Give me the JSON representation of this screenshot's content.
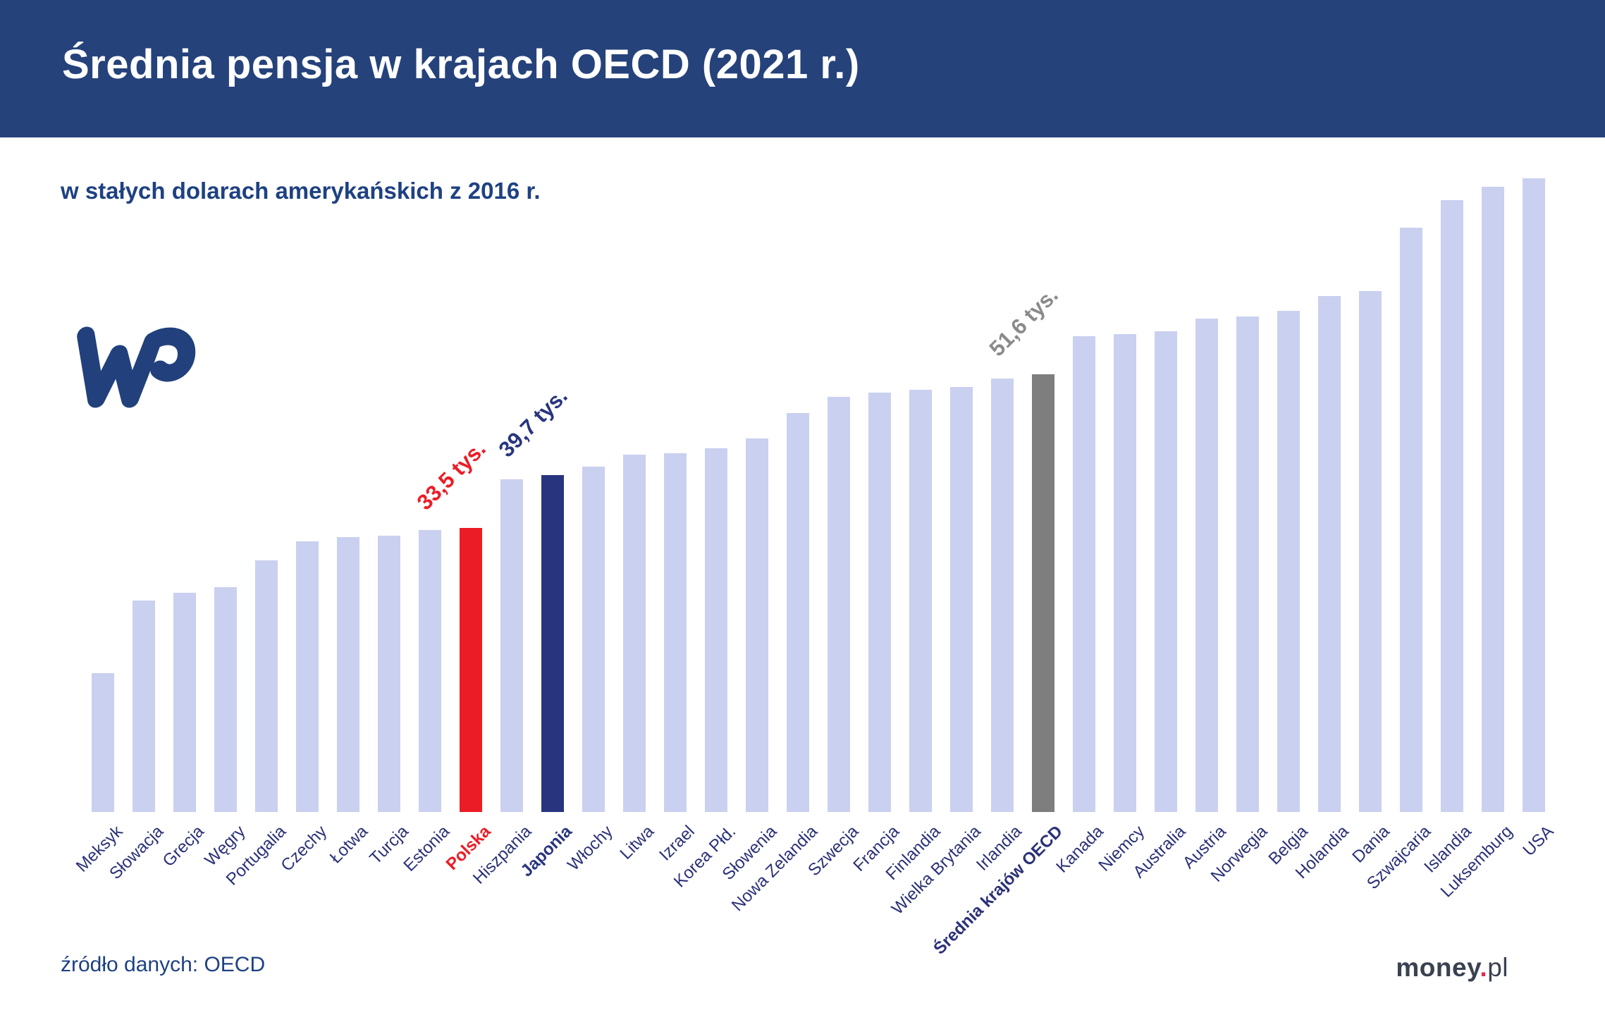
{
  "header": {
    "title": "Średnia pensja w krajach OECD (2021 r.)"
  },
  "subtitle": "w stałych dolarach amerykańskich z 2016 r.",
  "source_note": "źródło danych: OECD",
  "brand": {
    "money": "money",
    "dot": ".",
    "pl": "pl"
  },
  "wp_logo_name": "WP",
  "colors": {
    "header_bg": "#25427b",
    "title_text": "#ffffff",
    "subtitle_text": "#1e4182",
    "bar_default": "#cad0ef",
    "bar_poland": "#ec1c26",
    "bar_japan": "#28357e",
    "bar_oecd_avg": "#7e7e7e",
    "label_default": "#2b3178",
    "annotation_gray": "#8a8a8a"
  },
  "chart_data": {
    "type": "bar",
    "title": "Średnia pensja w krajach OECD (2021 r.)",
    "subtitle": "w stałych dolarach amerykańskich z 2016 r.",
    "unit": "tys. USD (stałe ceny 2016)",
    "xlabel": "",
    "ylabel": "",
    "grid": false,
    "legend": false,
    "ylim": [
      0,
      80
    ],
    "categories": [
      "Meksyk",
      "Słowacja",
      "Grecja",
      "Węgry",
      "Portugalia",
      "Czechy",
      "Łotwa",
      "Turcja",
      "Estonia",
      "Polska",
      "Hiszpania",
      "Japonia",
      "Włochy",
      "Litwa",
      "Izrael",
      "Korea Płd.",
      "Słowenia",
      "Nowa Zelandia",
      "Szwecja",
      "Francja",
      "Finlandia",
      "Wielka Brytania",
      "Irlandia",
      "Średnia krajów OECD",
      "Kanada",
      "Niemcy",
      "Australia",
      "Austria",
      "Norwegia",
      "Belgia",
      "Holandia",
      "Dania",
      "Szwajcaria",
      "Islandia",
      "Luksemburg",
      "USA"
    ],
    "values": [
      16.4,
      24.9,
      25.8,
      26.5,
      29.7,
      31.9,
      32.4,
      32.6,
      33.2,
      33.5,
      39.2,
      39.7,
      40.7,
      42.1,
      42.3,
      42.9,
      44.0,
      47.0,
      48.9,
      49.4,
      49.8,
      50.1,
      51.1,
      51.6,
      56.1,
      56.3,
      56.7,
      58.2,
      58.4,
      59.1,
      60.8,
      61.4,
      68.9,
      72.1,
      73.7,
      74.7
    ],
    "highlight_bars": {
      "Polska": "#ec1c26",
      "Japonia": "#28357e",
      "Średnia krajów OECD": "#7e7e7e"
    },
    "emphasized_labels": {
      "Polska": "#ec1c26",
      "Japonia": "#28357e",
      "Średnia krajów OECD": "#2b3178"
    },
    "annotations": [
      {
        "text": "33,5 tys.",
        "country": "Polska",
        "color": "#ec1c26"
      },
      {
        "text": "39,7 tys.",
        "country": "Japonia",
        "color": "#28357e"
      },
      {
        "text": "51,6 tys.",
        "country": "Średnia krajów OECD",
        "color": "#8a8a8a"
      }
    ]
  }
}
